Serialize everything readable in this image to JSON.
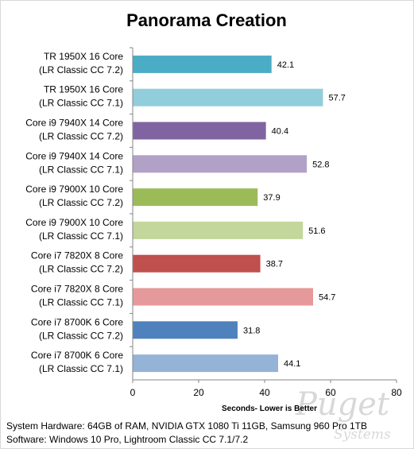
{
  "chart_data": {
    "type": "bar",
    "orientation": "horizontal",
    "title": "Panorama Creation",
    "xlabel": "Seconds- Lower is Better",
    "ylabel": "",
    "xlim": [
      0,
      80
    ],
    "ticks": [
      0,
      20,
      40,
      60,
      80
    ],
    "grid": false,
    "categories": [
      [
        "TR 1950X 16 Core",
        "(LR Classic CC 7.2)"
      ],
      [
        "TR 1950X 16 Core",
        "(LR Classic CC 7.1)"
      ],
      [
        "Core i9 7940X 14 Core",
        "(LR Classic CC 7.2)"
      ],
      [
        "Core i9 7940X 14 Core",
        "(LR Classic CC 7.1)"
      ],
      [
        "Core i9 7900X 10 Core",
        "(LR Classic CC 7.2)"
      ],
      [
        "Core i9 7900X 10 Core",
        "(LR Classic CC 7.1)"
      ],
      [
        "Core i7 7820X 8 Core",
        "(LR Classic CC 7.2)"
      ],
      [
        "Core i7 7820X 8 Core",
        "(LR Classic CC 7.1)"
      ],
      [
        "Core i7 8700K 6 Core",
        "(LR Classic CC 7.2)"
      ],
      [
        "Core i7 8700K 6 Core",
        "(LR Classic CC 7.1)"
      ]
    ],
    "values": [
      42.1,
      57.7,
      40.4,
      52.8,
      37.9,
      51.6,
      38.7,
      54.7,
      31.8,
      44.1
    ],
    "value_labels": [
      "42.1",
      "57.7",
      "40.4",
      "52.8",
      "37.9",
      "51.6",
      "38.7",
      "54.7",
      "31.8",
      "44.1"
    ],
    "colors": [
      "#4bacc6",
      "#92cddc",
      "#8064a2",
      "#b2a1c7",
      "#9bbb59",
      "#c3d69b",
      "#c0504d",
      "#e6999a",
      "#4f81bd",
      "#95b3d7"
    ]
  },
  "footer": {
    "hardware": "System Hardware: 64GB of RAM, NVIDIA GTX 1080  Ti 11GB, Samsung 960 Pro 1TB",
    "software": "Software: Windows 10 Pro, Lightroom Classic CC 7.1/7.2"
  },
  "watermark": {
    "line1": "Puget",
    "line2": "Systems"
  }
}
